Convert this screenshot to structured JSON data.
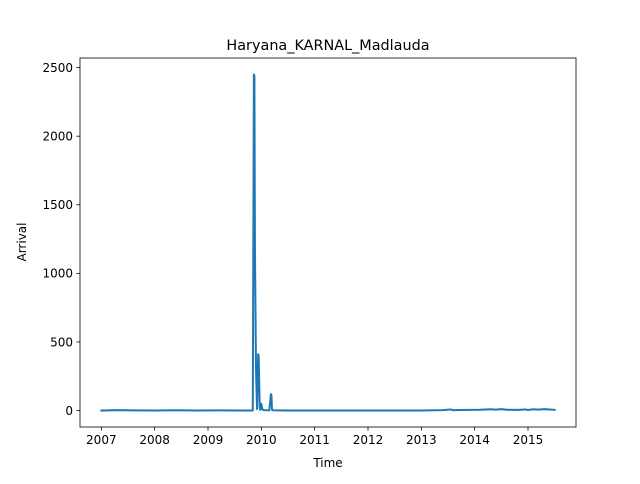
{
  "chart_data": {
    "type": "line",
    "title": "Haryana_KARNAL_Madlauda",
    "xlabel": "Time",
    "ylabel": "Arrival",
    "xlim": [
      2006.6,
      2015.9
    ],
    "ylim": [
      -120,
      2570
    ],
    "x_ticks": [
      2007,
      2008,
      2009,
      2010,
      2011,
      2012,
      2013,
      2014,
      2015
    ],
    "x_tick_labels": [
      "2007",
      "2008",
      "2009",
      "2010",
      "2011",
      "2012",
      "2013",
      "2014",
      "2015"
    ],
    "y_ticks": [
      0,
      500,
      1000,
      1500,
      2000,
      2500
    ],
    "y_tick_labels": [
      "0",
      "500",
      "1000",
      "1500",
      "2000",
      "2500"
    ],
    "grid": false,
    "series": [
      {
        "name": "Arrival",
        "color": "#1f77b4",
        "x": [
          2007.0,
          2007.3,
          2007.6,
          2008.0,
          2008.4,
          2008.8,
          2009.2,
          2009.6,
          2009.84,
          2009.86,
          2009.87,
          2009.88,
          2009.9,
          2009.92,
          2009.94,
          2009.95,
          2009.97,
          2009.98,
          2010.0,
          2010.02,
          2010.05,
          2010.1,
          2010.15,
          2010.18,
          2010.19,
          2010.2,
          2010.22,
          2010.3,
          2010.5,
          2011.0,
          2011.5,
          2012.0,
          2012.5,
          2013.0,
          2013.4,
          2013.55,
          2013.6,
          2013.7,
          2013.9,
          2014.1,
          2014.3,
          2014.4,
          2014.5,
          2014.6,
          2014.8,
          2014.95,
          2015.0,
          2015.1,
          2015.2,
          2015.3,
          2015.4,
          2015.5
        ],
        "y": [
          0,
          3,
          1,
          0,
          2,
          0,
          1,
          0,
          0,
          2450,
          2440,
          1200,
          300,
          10,
          410,
          400,
          20,
          5,
          50,
          8,
          3,
          2,
          1,
          120,
          110,
          5,
          2,
          1,
          0,
          0,
          0,
          0,
          0,
          0,
          3,
          8,
          2,
          4,
          5,
          6,
          9,
          7,
          10,
          6,
          5,
          8,
          4,
          9,
          7,
          10,
          8,
          5
        ]
      }
    ]
  }
}
